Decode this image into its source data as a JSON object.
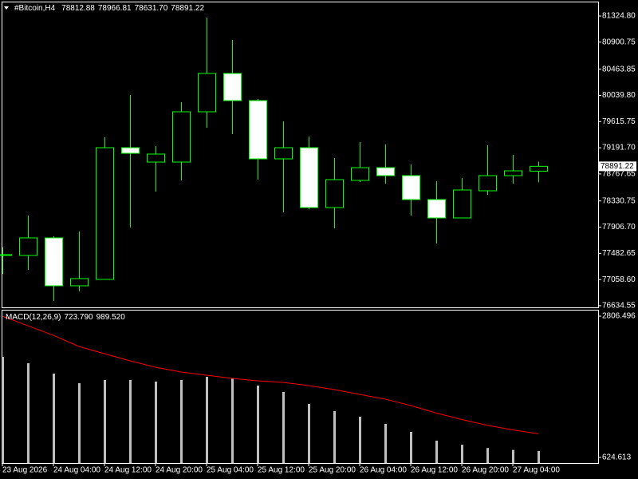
{
  "chart_data": [
    {
      "type": "candlestick",
      "title": "#Bitcoin,H4",
      "readout": [
        78812.88,
        78966.81,
        {
          "value": 78631.7,
          "label": "78631.70"
        },
        78891.22
      ],
      "categories": [
        "23 Aug 2026",
        null,
        "24 Aug 04:00",
        null,
        "24 Aug 12:00",
        null,
        "24 Aug 20:00",
        null,
        "25 Aug 04:00",
        null,
        "25 Aug 12:00",
        null,
        "25 Aug 20:00",
        null,
        "26 Aug 04:00",
        null,
        "26 Aug 12:00",
        null,
        "26 Aug 20:00",
        null,
        "27 Aug 04:00",
        null
      ],
      "open": [
        77448.6,
        77448.6,
        77732.8,
        76957.5,
        77060.9,
        79192.8,
        78960.2,
        78960.2,
        79774.3,
        80394.5,
        79955.2,
        79011.9,
        79192.8,
        78223.8,
        78663.1,
        78869.8,
        78740.6,
        78353.0,
        78055.8,
        78495.1,
        78740.6,
        78812.88
      ],
      "high": [
        77577.7,
        78094.6,
        77758.6,
        77836.1,
        79360.8,
        80045.6,
        79218.7,
        79929.3,
        81298.9,
        80937.2,
        79981.0,
        79618.8,
        79373.7,
        79024.9,
        79283.3,
        79245.0,
        78921.5,
        78650.2,
        78701.8,
        79231.6,
        79076.5,
        78966.81
      ],
      "low": [
        77151.3,
        77216.0,
        76712.0,
        76867.1,
        77060.9,
        77900.8,
        78482.2,
        78663.1,
        79515.9,
        79412.5,
        78676.0,
        78146.3,
        78200.0,
        77887.8,
        78637.2,
        78611.4,
        78094.6,
        77642.3,
        78055.8,
        78430.5,
        78611.4,
        78631.7
      ],
      "close": [
        77461.5,
        77732.8,
        76957.5,
        77073.8,
        79192.8,
        79102.4,
        79089.5,
        79774.3,
        80394.5,
        79955.2,
        79011.9,
        79192.8,
        78223.8,
        78676.0,
        78869.8,
        78740.6,
        78353.0,
        78055.8,
        78508.0,
        78740.6,
        78818.1,
        78891.22
      ],
      "color": "#00ff00",
      "up_fill": "#000000",
      "down_fill": "#ffffff",
      "ylim": [
        76608,
        81545
      ],
      "yticks": [
        {
          "value": 81324.8,
          "label": "81324.80"
        },
        80900.75,
        80463.85,
        {
          "value": 80039.8,
          "label": "80039.80"
        },
        79615.75,
        {
          "value": 79191.7,
          "label": "79191.70"
        },
        78767.65,
        78330.75,
        {
          "value": 77906.7,
          "label": "77906.70"
        },
        77482.65,
        {
          "value": 77058.6,
          "label": "77058.60"
        },
        76634.55
      ]
    },
    {
      "type": "macd",
      "title": "MACD(12,26,9)",
      "readout": [
        {
          "value": 723.79,
          "label": "723.790"
        },
        {
          "value": 989.52,
          "label": "989.520"
        }
      ],
      "histogram": {
        "color": "#c0c0c0",
        "values": [
          2177.8,
          2079.2,
          1919.0,
          1771.0,
          1820.3,
          1820.3,
          1795.7,
          1820.3,
          1869.6,
          1845.0,
          1734.0,
          1635.4,
          1450.5,
          1339.6,
          1253.3,
          1142.4,
          1019.1,
          883.5,
          820,
          770,
          740,
          723.79
        ]
      },
      "signal": {
        "color": "#ff0000",
        "values": [
          2806,
          2658,
          2510,
          2338,
          2227,
          2116,
          2018,
          1944,
          1894,
          1845,
          1808,
          1783,
          1734,
          1672,
          1598,
          1525,
          1426,
          1310,
          1210,
          1120,
          1050,
          989.52
        ]
      },
      "ylim": [
        538,
        2893
      ],
      "yticks": [
        2806.496,
        624.613
      ]
    }
  ]
}
